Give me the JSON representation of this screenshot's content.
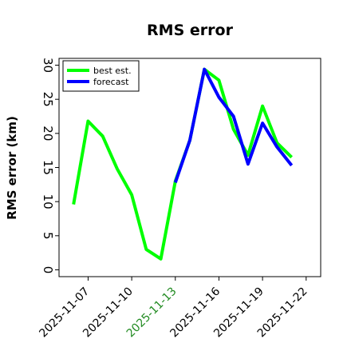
{
  "chart_data": {
    "type": "line",
    "title": "RMS error",
    "xlabel": "",
    "ylabel": "RMS error (km)",
    "x_ticks": [
      "2025-11-07",
      "2025-11-10",
      "2025-11-13",
      "2025-11-16",
      "2025-11-19",
      "2025-11-22"
    ],
    "highlight_tick": "2025-11-13",
    "x_range": [
      "2025-11-05",
      "2025-11-23"
    ],
    "ylim": [
      -1,
      31
    ],
    "y_ticks": [
      0,
      5,
      10,
      15,
      20,
      25,
      30
    ],
    "grid": false,
    "legend_position": "top-left",
    "series": [
      {
        "name": "best est.",
        "color": "#00ff00",
        "x": [
          "2025-11-06",
          "2025-11-07",
          "2025-11-08",
          "2025-11-09",
          "2025-11-10",
          "2025-11-11",
          "2025-11-12",
          "2025-11-13",
          "2025-11-14",
          "2025-11-15",
          "2025-11-16",
          "2025-11-17",
          "2025-11-18",
          "2025-11-19",
          "2025-11-20",
          "2025-11-21"
        ],
        "values": [
          9.6,
          21.8,
          19.6,
          14.8,
          11.0,
          3.0,
          1.6,
          13.0,
          19.0,
          29.4,
          27.8,
          20.6,
          16.8,
          24.0,
          18.6,
          16.5
        ]
      },
      {
        "name": "forecast",
        "color": "#0000ff",
        "x": [
          "2025-11-13",
          "2025-11-14",
          "2025-11-15",
          "2025-11-16",
          "2025-11-17",
          "2025-11-18",
          "2025-11-19",
          "2025-11-20",
          "2025-11-21"
        ],
        "values": [
          12.8,
          19.0,
          29.4,
          25.3,
          22.5,
          15.5,
          21.5,
          18.0,
          15.3
        ]
      }
    ],
    "colors": {
      "highlight_tick": "#228B22",
      "axis": "#000000"
    }
  }
}
